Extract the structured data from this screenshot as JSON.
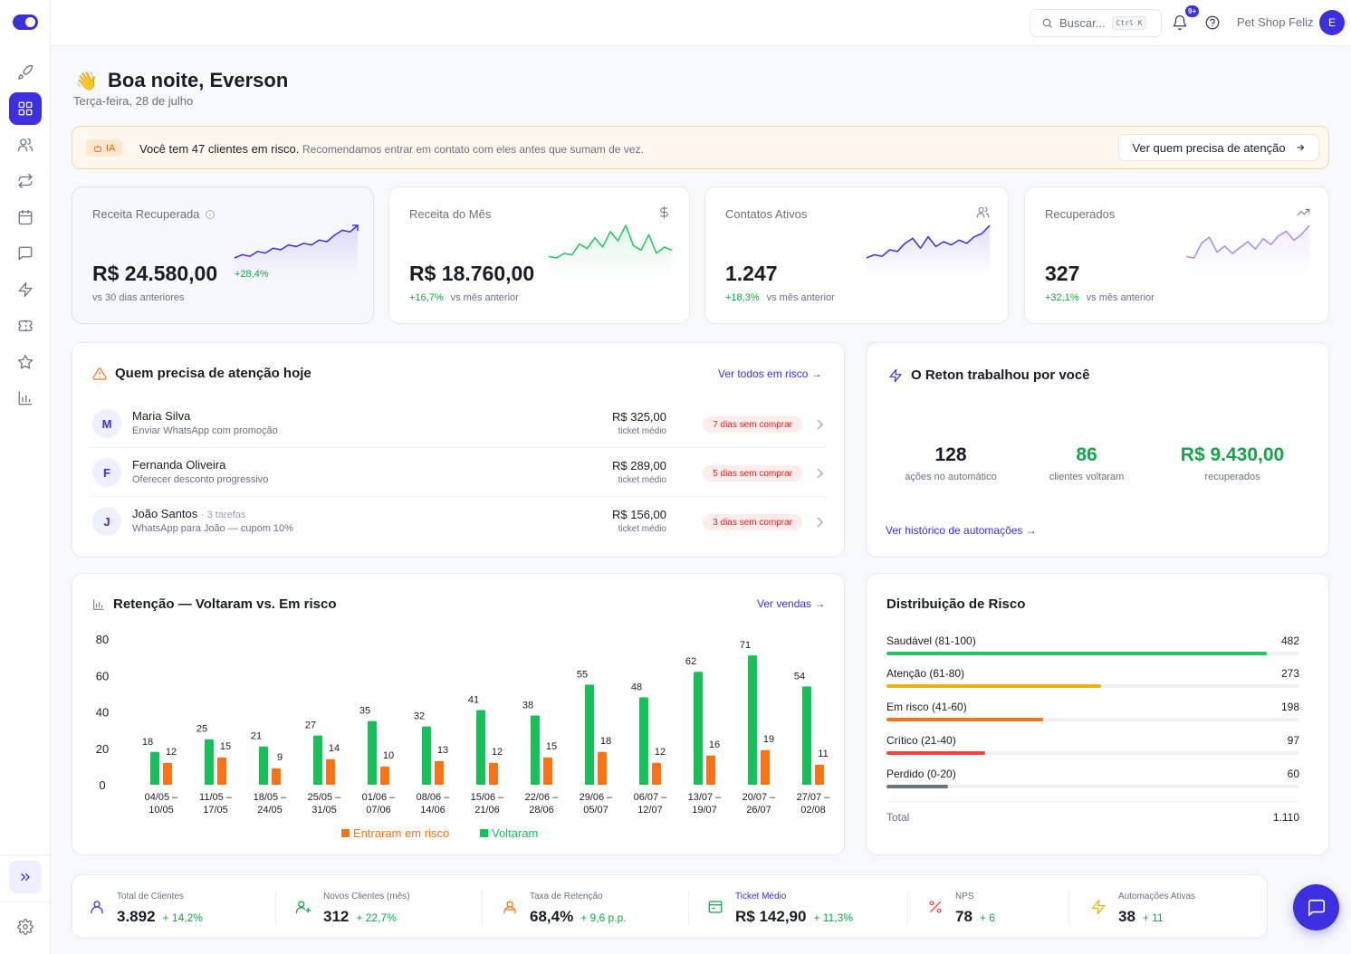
{
  "topbar": {
    "search_placeholder": "Buscar...",
    "search_shortcut": "Ctrl K",
    "notification_badge": "9+",
    "shop_name": "Pet Shop Feliz",
    "avatar_initial": "E"
  },
  "greeting": {
    "emoji": "👋",
    "title": "Boa noite, Everson",
    "date": "Terça-feira, 28 de julho"
  },
  "banner": {
    "tag": "IA",
    "text": "Você tem 47 clientes em risco.",
    "subtext": "Recomendamos entrar em contato com eles antes que sumam de vez.",
    "button": "Ver quem precisa de atenção"
  },
  "kpis": [
    {
      "label": "Receita Recuperada",
      "value": "R$ 24.580,00",
      "delta": "+28,4%",
      "foot": "vs 30 dias anteriores",
      "icon": "trend-up-icon",
      "spark": [
        3,
        5,
        4,
        7,
        6,
        9,
        8,
        11,
        10,
        12,
        11,
        14,
        13,
        17,
        20,
        19,
        23
      ],
      "spark_color": "#3b2fe0"
    },
    {
      "label": "Receita do Mês",
      "value": "R$ 18.760,00",
      "delta": "+16,7%",
      "foot": "vs mês anterior",
      "icon": "dollar-icon",
      "spark": [
        8,
        7,
        10,
        9,
        16,
        13,
        20,
        14,
        24,
        18,
        28,
        15,
        12,
        22,
        10,
        14,
        12
      ],
      "spark_color": "#22c55e"
    },
    {
      "label": "Contatos Ativos",
      "value": "1.247",
      "delta": "+18,3%",
      "foot": "vs mês anterior",
      "icon": "users-icon",
      "spark": [
        4,
        6,
        5,
        9,
        8,
        13,
        16,
        10,
        17,
        11,
        14,
        12,
        15,
        13,
        17,
        19,
        24
      ],
      "spark_color": "#3b2fe0"
    },
    {
      "label": "Recuperados",
      "value": "327",
      "delta": "+32,1%",
      "foot": "vs mês anterior",
      "icon": "trend-up-icon",
      "spark": [
        5,
        4,
        14,
        18,
        8,
        12,
        7,
        11,
        15,
        10,
        17,
        13,
        19,
        22,
        16,
        20,
        26
      ],
      "spark_color": "#a78bfa"
    }
  ],
  "attention": {
    "title": "Quem precisa de atenção hoje",
    "link": "Ver todos em risco →",
    "rows": [
      {
        "initial": "M",
        "name": "Maria Silva",
        "tasks": "",
        "action": "Enviar WhatsApp com promoção",
        "amount": "R$ 325,00",
        "amount_sub": "ticket médio",
        "pill": "7 dias sem comprar"
      },
      {
        "initial": "F",
        "name": "Fernanda Oliveira",
        "tasks": "",
        "action": "Oferecer desconto progressivo",
        "amount": "R$ 289,00",
        "amount_sub": "ticket médio",
        "pill": "5 dias sem comprar"
      },
      {
        "initial": "J",
        "name": "João Santos",
        "tasks": "· 3 tarefas",
        "action": "WhatsApp para João — cupom 10%",
        "amount": "R$ 156,00",
        "amount_sub": "ticket médio",
        "pill": "3 dias sem comprar"
      }
    ]
  },
  "reton": {
    "title": "O Reton trabalhou por você",
    "stats": [
      {
        "value": "128",
        "label": "ações no automático",
        "color": "#1a1d26"
      },
      {
        "value": "86",
        "label": "clientes voltaram",
        "color": "#16a34a"
      },
      {
        "value": "R$ 9.430,00",
        "label": "recuperados",
        "color": "#16a34a"
      }
    ],
    "link": "Ver histórico de automações →"
  },
  "retention": {
    "title": "Retenção — Voltaram vs. Em risco",
    "link": "Ver vendas →"
  },
  "chart_data": {
    "type": "bar",
    "title": "Retenção — Voltaram vs. Em risco",
    "categories": [
      [
        "04/05 –",
        "10/05"
      ],
      [
        "11/05 –",
        "17/05"
      ],
      [
        "18/05 –",
        "24/05"
      ],
      [
        "25/05 –",
        "31/05"
      ],
      [
        "01/06 –",
        "07/06"
      ],
      [
        "08/06 –",
        "14/06"
      ],
      [
        "15/06 –",
        "21/06"
      ],
      [
        "22/06 –",
        "28/06"
      ],
      [
        "29/06 –",
        "05/07"
      ],
      [
        "06/07 –",
        "12/07"
      ],
      [
        "13/07 –",
        "19/07"
      ],
      [
        "20/07 –",
        "26/07"
      ],
      [
        "27/07 –",
        "02/08"
      ]
    ],
    "series": [
      {
        "name": "Voltaram",
        "color": "#16c15a",
        "values": [
          18,
          25,
          21,
          27,
          35,
          32,
          41,
          38,
          55,
          48,
          62,
          71,
          54
        ]
      },
      {
        "name": "Entraram em risco",
        "color": "#f97316",
        "values": [
          12,
          15,
          9,
          14,
          10,
          13,
          12,
          15,
          18,
          12,
          16,
          19,
          11
        ]
      }
    ],
    "yticks": [
      0,
      20,
      40,
      60,
      80
    ],
    "ylim": [
      0,
      80
    ],
    "legend": [
      {
        "name": "Entraram em risco",
        "color": "#f97316"
      },
      {
        "name": "Voltaram",
        "color": "#16c15a"
      }
    ],
    "legend_position": "bottom"
  },
  "distribution": {
    "title": "Distribuição de Risco",
    "rows": [
      {
        "label": "Saudável (81-100)",
        "count": "482",
        "fraction": 0.92,
        "color": "#22c55e"
      },
      {
        "label": "Atenção (61-80)",
        "count": "273",
        "fraction": 0.52,
        "color": "#eab308"
      },
      {
        "label": "Em risco (41-60)",
        "count": "198",
        "fraction": 0.38,
        "color": "#f97316"
      },
      {
        "label": "Crítico (21-40)",
        "count": "97",
        "fraction": 0.24,
        "color": "#ef4444"
      },
      {
        "label": "Perdido (0-20)",
        "count": "60",
        "fraction": 0.15,
        "color": "#6b7280"
      }
    ],
    "total_label": "Total",
    "total_value": "1.110"
  },
  "bottom_stats": [
    {
      "label": "Total de Clientes",
      "value": "3.892",
      "delta": "+ 14,2%",
      "icon": "user-icon",
      "color": "#3b2fe0"
    },
    {
      "label": "Novos Clientes (mês)",
      "value": "312",
      "delta": "+ 22,7%",
      "icon": "user-plus-icon",
      "color": "#16a34a"
    },
    {
      "label": "Taxa de Retenção",
      "value": "68,4%",
      "delta": "+ 9,6 p.p.",
      "icon": "retention-icon",
      "color": "#f97316"
    },
    {
      "label": "Ticket Médio",
      "value": "R$ 142,90",
      "delta": "+ 11,3%",
      "icon": "ticket-icon",
      "color": "#16a34a"
    },
    {
      "label": "NPS",
      "value": "78",
      "delta": "+ 6",
      "icon": "percent-icon",
      "color": "#ef4444"
    },
    {
      "label": "Automações Ativas",
      "value": "38",
      "delta": "+ 11",
      "icon": "bolt-icon",
      "color": "#eab308"
    }
  ]
}
